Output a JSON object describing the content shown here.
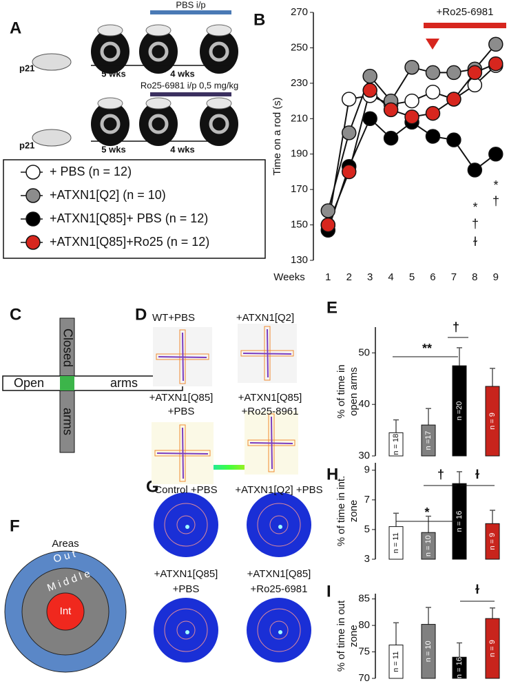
{
  "panel_letters": [
    "A",
    "B",
    "C",
    "D",
    "E",
    "F",
    "G",
    "H",
    "I"
  ],
  "panel_a": {
    "schemes": [
      {
        "treatment": "PBS i/p",
        "age": "p21",
        "phase1": "5 wks",
        "phase2": "4 wks"
      },
      {
        "treatment": "Ro25-6981 i/p 0,5 mg/kg",
        "age": "p21",
        "phase1": "5 wks",
        "phase2": "4 wks"
      }
    ]
  },
  "panel_c": {
    "closed": "Closed",
    "closed_arms": "arms",
    "open": "Open",
    "open_arms": "arms"
  },
  "panel_d": {
    "images": [
      [
        "WT+PBS"
      ],
      [
        "+ATXN1[Q2]"
      ],
      [
        "+ATXN1[Q85]",
        "+PBS"
      ],
      [
        "+ATXN1[Q85]",
        "+Ro25-8961"
      ]
    ]
  },
  "panel_f": {
    "title": "Areas",
    "outer": "O u t",
    "middle": "M i d d l e",
    "inner": "Int"
  },
  "panel_g": {
    "images": [
      [
        "Control +PBS"
      ],
      [
        "+ATXN1[Q2] +PBS"
      ],
      [
        "+ATXN1[Q85]",
        "+PBS"
      ],
      [
        "+ATXN1[Q85]",
        "+Ro25-6981"
      ]
    ]
  },
  "chart_data": [
    {
      "type": "line",
      "xlabel": "Weeks",
      "ylabel": "Time on a rod (s)",
      "x": [
        1,
        2,
        3,
        4,
        5,
        6,
        7,
        8,
        9
      ],
      "xlim": [
        0.3,
        9.5
      ],
      "xticks": [
        1,
        2,
        3,
        4,
        5,
        6,
        7,
        8,
        9
      ],
      "ylim": [
        130,
        270
      ],
      "yticks": [
        130,
        150,
        170,
        190,
        210,
        230,
        250,
        270
      ],
      "series": [
        {
          "name": "+ PBS (n = 12)",
          "color": "#ffffff",
          "values": [
            150,
            221,
            223,
            218,
            220,
            225,
            221,
            229,
            240
          ]
        },
        {
          "name": "+ATXN1[Q2] (n = 10)",
          "color": "#8c8c8c",
          "values": [
            158,
            202,
            234,
            220,
            239,
            236,
            236,
            238,
            252
          ]
        },
        {
          "name": "+ATXN1[Q85]+ PBS (n = 12)",
          "color": "#000000",
          "values": [
            147,
            183,
            210,
            199,
            208,
            200,
            198,
            181,
            190
          ]
        },
        {
          "name": "+ATXN1[Q85]+Ro25 (n = 12)",
          "color": "#d7261e",
          "values": [
            150,
            180,
            226,
            215,
            211,
            213,
            221,
            236,
            241
          ]
        }
      ],
      "annotations": [
        "+Ro25-6981",
        "*",
        "†",
        "ɫ",
        "*",
        "†"
      ]
    },
    {
      "type": "bar",
      "ylabel": [
        "% of time in",
        "open arms"
      ],
      "values": [
        34.5,
        36,
        47.5,
        43.5
      ],
      "errors": [
        2.5,
        3.2,
        3.5,
        3.5
      ],
      "colors": [
        "#ffffff",
        "#808080",
        "#000000",
        "#c8241c"
      ],
      "bar_labels": [
        "n = 18",
        "n =17",
        "n =20",
        "n = 9"
      ],
      "ylim": [
        30,
        55
      ],
      "yticks": [
        30,
        40,
        50
      ],
      "significance": [
        "**",
        "†"
      ]
    },
    {
      "type": "bar",
      "ylabel": [
        "% of time in int.",
        "zone"
      ],
      "values": [
        5.2,
        4.8,
        8.1,
        5.4
      ],
      "errors": [
        0.9,
        1.1,
        0.8,
        0.9
      ],
      "colors": [
        "#ffffff",
        "#808080",
        "#000000",
        "#c8241c"
      ],
      "bar_labels": [
        "n = 11",
        "n = 10",
        "n = 16",
        "n = 9"
      ],
      "ylim": [
        3,
        9.5
      ],
      "yticks": [
        3,
        5,
        7,
        9
      ],
      "significance": [
        "†",
        "*",
        "ɫ"
      ]
    },
    {
      "type": "bar",
      "ylabel": [
        "% of time in out",
        "zone"
      ],
      "values": [
        76.3,
        80.2,
        74,
        81.3
      ],
      "errors": [
        4.2,
        3.2,
        2.7,
        2
      ],
      "colors": [
        "#ffffff",
        "#808080",
        "#000000",
        "#c8241c"
      ],
      "bar_labels": [
        "n = 11",
        "n = 10",
        "n = 16",
        "n = 9"
      ],
      "ylim": [
        70,
        86
      ],
      "yticks": [
        70,
        75,
        80,
        85
      ],
      "significance": [
        "ɫ"
      ]
    }
  ]
}
